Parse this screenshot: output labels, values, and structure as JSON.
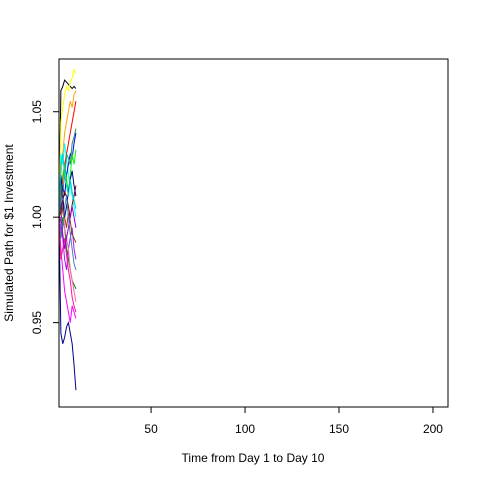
{
  "chart_data": {
    "type": "line",
    "title": "",
    "xlabel": "Time from Day 1 to Day 10",
    "ylabel": "Simulated Path for $1 Investment",
    "xlim": [
      1,
      208
    ],
    "ylim": [
      0.91,
      1.075
    ],
    "x_ticks": [
      50,
      100,
      150,
      200
    ],
    "y_ticks": [
      0.95,
      1.0,
      1.05
    ],
    "y_tick_labels": [
      "0.95",
      "1.00",
      "1.05"
    ],
    "grid": false,
    "legend": "none",
    "x": [
      1,
      2,
      3,
      4,
      5,
      6,
      7,
      8,
      9,
      10
    ],
    "series": [
      {
        "color": "#000000",
        "values": [
          1.0,
          1.06,
          1.062,
          1.065,
          1.064,
          1.063,
          1.062,
          1.061,
          1.062,
          1.061
        ]
      },
      {
        "color": "#00008b",
        "values": [
          1.0,
          0.945,
          0.94,
          0.943,
          0.948,
          0.95,
          0.945,
          0.94,
          0.93,
          0.918
        ]
      },
      {
        "color": "#ffff00",
        "values": [
          1.0,
          1.045,
          1.052,
          1.058,
          1.062,
          1.06,
          1.064,
          1.066,
          1.07,
          1.068
        ]
      },
      {
        "color": "#ff0000",
        "values": [
          1.0,
          1.01,
          1.018,
          1.025,
          1.03,
          1.035,
          1.04,
          1.045,
          1.05,
          1.055
        ]
      },
      {
        "color": "#ffa500",
        "values": [
          1.0,
          1.02,
          1.03,
          1.04,
          1.045,
          1.05,
          1.055,
          1.052,
          1.058,
          1.06
        ]
      },
      {
        "color": "#ff00ff",
        "values": [
          1.0,
          0.985,
          0.975,
          0.965,
          0.96,
          0.955,
          0.95,
          0.958,
          0.955,
          0.952
        ]
      },
      {
        "color": "#00ffff",
        "values": [
          1.0,
          1.03,
          1.025,
          1.035,
          1.028,
          1.02,
          1.015,
          1.01,
          1.005,
          1.0
        ]
      },
      {
        "color": "#008000",
        "values": [
          1.0,
          0.99,
          1.0,
          0.995,
          0.985,
          0.98,
          0.975,
          0.97,
          0.968,
          0.966
        ]
      },
      {
        "color": "#0000ff",
        "values": [
          1.0,
          1.005,
          1.015,
          1.01,
          1.02,
          1.025,
          1.03,
          1.028,
          1.035,
          1.04
        ]
      },
      {
        "color": "#a020f0",
        "values": [
          1.0,
          0.995,
          0.99,
          0.98,
          0.975,
          0.985,
          0.99,
          0.995,
          0.985,
          0.98
        ]
      },
      {
        "color": "#ff69b4",
        "values": [
          1.0,
          1.01,
          1.005,
          0.995,
          0.99,
          0.985,
          0.975,
          0.97,
          0.965,
          0.96
        ]
      },
      {
        "color": "#00ff00",
        "values": [
          1.0,
          1.015,
          1.02,
          1.025,
          1.018,
          1.012,
          1.02,
          1.03,
          1.025,
          1.032
        ]
      },
      {
        "color": "#8b4513",
        "values": [
          1.0,
          0.998,
          1.005,
          1.0,
          0.995,
          1.002,
          0.998,
          0.992,
          0.99,
          0.988
        ]
      },
      {
        "color": "#800000",
        "values": [
          1.0,
          1.002,
          1.008,
          1.012,
          1.01,
          1.005,
          1.0,
          1.006,
          1.01,
          1.015
        ]
      },
      {
        "color": "#000080",
        "values": [
          1.0,
          1.02,
          1.01,
          1.0,
          1.005,
          1.012,
          1.018,
          1.022,
          1.015,
          1.01
        ]
      },
      {
        "color": "#4682b4",
        "values": [
          1.0,
          0.99,
          0.995,
          1.005,
          1.01,
          1.0,
          0.992,
          0.985,
          0.978,
          0.975
        ]
      },
      {
        "color": "#2e8b57",
        "values": [
          1.0,
          1.008,
          1.012,
          1.02,
          1.03,
          1.028,
          1.025,
          1.035,
          1.038,
          1.042
        ]
      },
      {
        "color": "#ff1493",
        "values": [
          1.0,
          0.98,
          0.985,
          0.99,
          0.982,
          0.975,
          0.97,
          0.962,
          0.958,
          0.955
        ]
      },
      {
        "color": "#00ced1",
        "values": [
          1.0,
          1.025,
          1.03,
          1.02,
          1.015,
          1.01,
          1.018,
          1.012,
          1.008,
          1.004
        ]
      },
      {
        "color": "#9400d3",
        "values": [
          1.0,
          1.0,
          0.992,
          0.985,
          0.99,
          0.995,
          1.0,
          1.005,
          1.0,
          0.995
        ]
      }
    ]
  }
}
